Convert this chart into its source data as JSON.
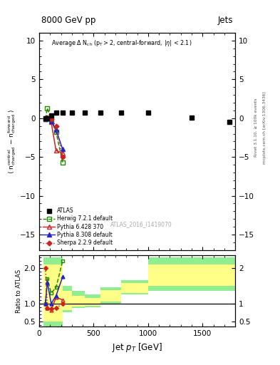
{
  "title_top": "8000 GeV pp",
  "title_right": "Jets",
  "annotation": "Average Δ N$_{ch}$ (p$_{T}$>2, central-forward, |η| < 2.1)",
  "watermark": "ATLAS_2016_I1419070",
  "atlas_x": [
    57,
    75,
    110,
    155,
    215,
    300,
    420,
    560,
    750,
    1000,
    1400,
    1750
  ],
  "atlas_y": [
    -0.05,
    -0.05,
    0.3,
    0.7,
    0.7,
    0.7,
    0.7,
    0.7,
    0.7,
    0.7,
    0.05,
    -0.5
  ],
  "atlas_yerr": [
    0.15,
    0.15,
    0.15,
    0.15,
    0.15,
    0.15,
    0.15,
    0.15,
    0.15,
    0.15,
    0.15,
    0.15
  ],
  "herwig_x": [
    57,
    75,
    110,
    155,
    215
  ],
  "herwig_y": [
    -0.1,
    1.3,
    -0.2,
    -1.8,
    -5.7
  ],
  "pythia6_x": [
    57,
    75,
    110,
    155,
    215
  ],
  "pythia6_y": [
    -0.05,
    0.0,
    -0.5,
    -4.2,
    -4.5
  ],
  "pythia8_x": [
    57,
    75,
    110,
    155,
    215
  ],
  "pythia8_y": [
    -0.1,
    0.0,
    -0.4,
    -1.5,
    -4.0
  ],
  "sherpa_x": [
    57,
    75,
    110,
    155,
    215
  ],
  "sherpa_y": [
    -0.05,
    0.1,
    -0.1,
    -1.0,
    -5.0
  ],
  "ratio_x_edges": [
    40,
    75,
    110,
    155,
    215,
    300,
    420,
    560,
    750,
    1000,
    1200,
    1800
  ],
  "ratio_green_lo": [
    0.3,
    0.3,
    0.3,
    0.3,
    0.75,
    0.88,
    0.9,
    1.0,
    1.25,
    1.35,
    1.35
  ],
  "ratio_green_hi": [
    2.3,
    2.3,
    2.3,
    2.3,
    1.5,
    1.35,
    1.25,
    1.45,
    1.65,
    2.3,
    2.3
  ],
  "ratio_yellow_lo": [
    0.5,
    0.5,
    0.5,
    0.5,
    0.82,
    0.91,
    0.93,
    1.05,
    1.3,
    1.5,
    1.5
  ],
  "ratio_yellow_hi": [
    2.1,
    2.1,
    2.1,
    2.1,
    1.35,
    1.22,
    1.15,
    1.38,
    1.58,
    2.1,
    2.1
  ],
  "herwig_ratio_x": [
    57,
    75,
    110,
    155,
    215
  ],
  "herwig_ratio_y": [
    1.0,
    1.7,
    1.3,
    1.45,
    2.2
  ],
  "pythia6_ratio_x": [
    57,
    75,
    110,
    155,
    215
  ],
  "pythia6_ratio_y": [
    1.0,
    0.88,
    0.82,
    1.18,
    1.1
  ],
  "pythia8_ratio_x": [
    57,
    75,
    110,
    155,
    215
  ],
  "pythia8_ratio_y": [
    1.0,
    1.6,
    1.0,
    1.22,
    1.75
  ],
  "sherpa_ratio_x": [
    57,
    75,
    110,
    155,
    215
  ],
  "sherpa_ratio_y": [
    2.0,
    0.88,
    0.85,
    0.87,
    1.0
  ],
  "xmin": 0,
  "xmax": 1800,
  "ymin": -17,
  "ymax": 11,
  "ratio_ymin": 0.35,
  "ratio_ymax": 2.35,
  "color_atlas": "#000000",
  "color_herwig": "#228800",
  "color_pythia6": "#cc2222",
  "color_pythia8": "#2222cc",
  "color_sherpa": "#cc2222",
  "bg_color": "#ffffff",
  "green_band": "#90ee90",
  "yellow_band": "#ffff88"
}
